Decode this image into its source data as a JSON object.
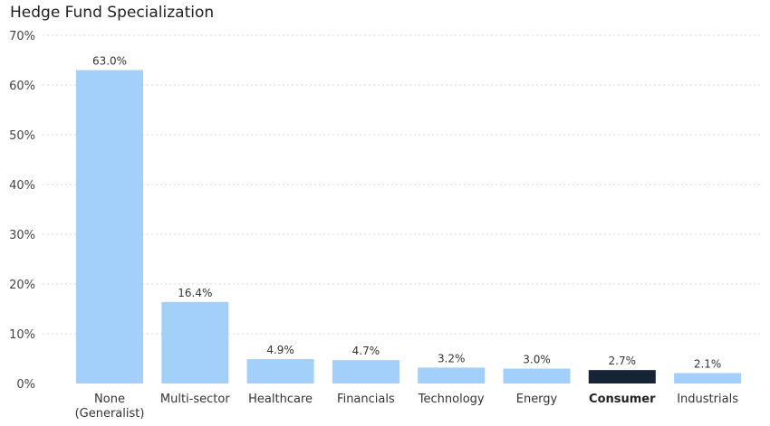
{
  "chart_data": {
    "type": "bar",
    "title": "Hedge Fund Specialization",
    "xlabel": "",
    "ylabel": "",
    "ylim": [
      0,
      70
    ],
    "yticks": [
      "0%",
      "10%",
      "20%",
      "30%",
      "40%",
      "50%",
      "60%",
      "70%"
    ],
    "ytick_values": [
      0,
      10,
      20,
      30,
      40,
      50,
      60,
      70
    ],
    "grid": true,
    "legend": "none",
    "categories": [
      "None (Generalist)",
      "Multi-sector",
      "Healthcare",
      "Financials",
      "Technology",
      "Energy",
      "Consumer",
      "Industrials"
    ],
    "category_lines": [
      [
        "None",
        "(Generalist)"
      ],
      [
        "Multi-sector"
      ],
      [
        "Healthcare"
      ],
      [
        "Financials"
      ],
      [
        "Technology"
      ],
      [
        "Energy"
      ],
      [
        "Consumer"
      ],
      [
        "Industrials"
      ]
    ],
    "values": [
      63.0,
      16.4,
      4.9,
      4.7,
      3.2,
      3.0,
      2.7,
      2.1
    ],
    "data_labels": [
      "63.0%",
      "16.4%",
      "4.9%",
      "4.7%",
      "3.2%",
      "3.0%",
      "2.7%",
      "2.1%"
    ],
    "highlighted_category": "Consumer",
    "colors": {
      "bar": "#a3d0fb",
      "highlight": "#172435"
    }
  }
}
